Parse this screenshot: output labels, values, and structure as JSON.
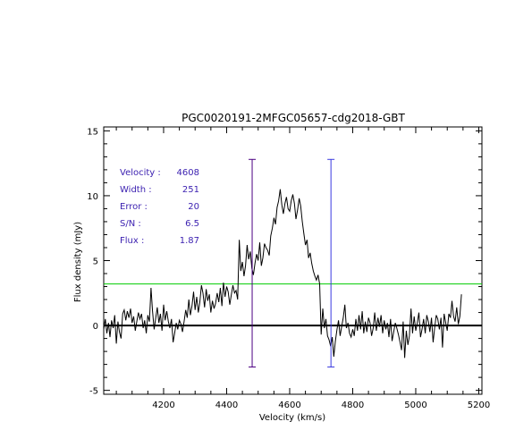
{
  "chart_data": {
    "type": "line",
    "title": "PGC0020191-2MFGC05657-cdg2018-GBT",
    "xlabel": "Velocity (km/s)",
    "ylabel": "Flux density (mJy)",
    "xlim": [
      4010,
      5210
    ],
    "ylim": [
      -5.3,
      15.3
    ],
    "x_ticks": [
      4200,
      4400,
      4600,
      4800,
      5000,
      5200
    ],
    "y_ticks": [
      -5,
      0,
      5,
      10,
      15
    ],
    "x_tick_labels": [
      "4200",
      "4400",
      "4600",
      "4800",
      "5000",
      "5200"
    ],
    "y_tick_labels": [
      "-5",
      "0",
      "5",
      "10",
      "15"
    ],
    "grid": false,
    "legend": "none",
    "spectrum": {
      "x_start": 4010,
      "x_step": 5,
      "y": [
        -0.3,
        0.5,
        -0.6,
        0.2,
        -0.9,
        0.4,
        -0.2,
        0.8,
        -1.4,
        0.3,
        -0.5,
        -1.0,
        0.9,
        1.2,
        0.4,
        1.1,
        0.6,
        1.3,
        0.2,
        0.7,
        -0.4,
        0.3,
        1.0,
        0.5,
        0.9,
        -0.2,
        0.4,
        -0.6,
        0.8,
        0.3,
        2.9,
        1.1,
        -0.3,
        0.6,
        1.4,
        0.2,
        0.9,
        -0.4,
        1.6,
        0.4,
        1.1,
        0.3,
        -0.2,
        0.5,
        -1.3,
        -0.6,
        0.2,
        -0.3,
        0.4,
        0.1,
        -0.5,
        0.3,
        1.2,
        0.6,
        2.0,
        0.8,
        1.5,
        2.6,
        1.2,
        2.2,
        1.0,
        1.8,
        3.1,
        2.5,
        1.4,
        2.8,
        1.9,
        2.4,
        1.0,
        1.9,
        1.3,
        1.7,
        2.5,
        1.8,
        2.9,
        1.5,
        3.3,
        2.2,
        3.0,
        2.6,
        1.6,
        2.4,
        3.1,
        2.5,
        2.7,
        2.0,
        6.6,
        4.2,
        4.9,
        3.8,
        4.6,
        6.2,
        5.1,
        5.7,
        4.4,
        3.9,
        4.8,
        5.5,
        5.0,
        6.4,
        4.6,
        5.2,
        6.3,
        6.0,
        5.8,
        5.4,
        6.9,
        7.5,
        8.3,
        7.8,
        9.1,
        9.6,
        10.5,
        9.3,
        8.6,
        9.4,
        9.9,
        9.0,
        8.8,
        9.6,
        10.1,
        9.4,
        8.2,
        8.9,
        9.8,
        9.2,
        8.0,
        7.1,
        6.2,
        6.6,
        5.2,
        5.6,
        4.8,
        4.2,
        3.8,
        3.5,
        3.9,
        3.2,
        -0.7,
        1.3,
        -0.2,
        0.5,
        -0.8,
        -1.1,
        -1.6,
        -0.9,
        -2.4,
        -1.2,
        -0.3,
        0.4,
        -0.8,
        -0.1,
        0.6,
        1.6,
        -0.2,
        0.2,
        -0.6,
        -0.9,
        -0.3,
        -0.8,
        0.5,
        -0.4,
        0.8,
        -0.3,
        1.1,
        -0.6,
        0.3,
        -0.5,
        0.6,
        0.2,
        -0.8,
        -0.2,
        1.0,
        -0.4,
        0.6,
        -0.1,
        0.8,
        -0.6,
        0.4,
        -0.3,
        0.2,
        -0.9,
        0.5,
        -1.2,
        -0.5,
        0.2,
        -0.2,
        -0.7,
        -1.3,
        -1.9,
        0.3,
        -2.5,
        -0.4,
        -1.5,
        -0.8,
        1.3,
        -0.6,
        0.7,
        -0.4,
        0.2,
        1.0,
        -0.9,
        -0.3,
        0.5,
        -0.6,
        0.8,
        0.3,
        -0.5,
        0.6,
        -1.3,
        -0.2,
        0.8,
        0.5,
        -0.3,
        0.6,
        -1.7,
        0.9,
        0.2,
        -0.4,
        0.9,
        0.6,
        1.9,
        0.7,
        0.3,
        1.4,
        0.1,
        0.7,
        2.4
      ],
      "color": "#000000"
    },
    "threshold_line": {
      "y": 3.2,
      "color": "#00cc00"
    },
    "zero_line": {
      "y": 0,
      "color": "#000000"
    },
    "markers": [
      {
        "x": 4481,
        "y_bottom": -3.2,
        "y_top": 12.8,
        "color": "#4b0082"
      },
      {
        "x": 4731,
        "y_bottom": -3.2,
        "y_top": 12.8,
        "color": "#3a3ae0"
      }
    ],
    "info_color": "#3a1fb0",
    "info": [
      {
        "label": "Velocity :",
        "value": "4608"
      },
      {
        "label": "Width :",
        "value": "251"
      },
      {
        "label": "Error :",
        "value": "20"
      },
      {
        "label": "S/N :",
        "value": "6.5"
      },
      {
        "label": "Flux :",
        "value": "1.87"
      }
    ]
  }
}
